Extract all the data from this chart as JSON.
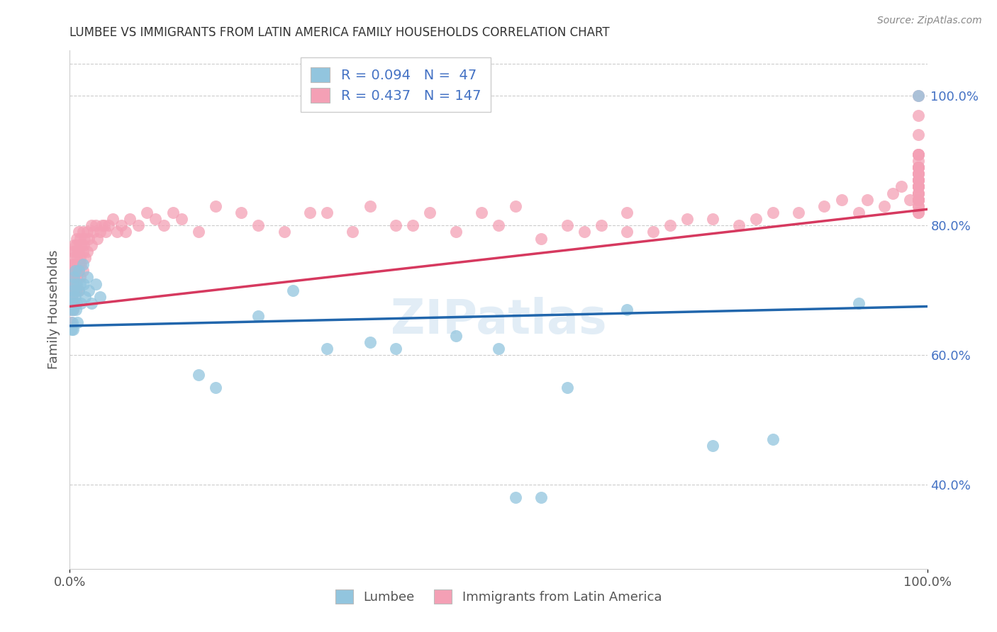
{
  "title": "LUMBEE VS IMMIGRANTS FROM LATIN AMERICA FAMILY HOUSEHOLDS CORRELATION CHART",
  "source": "Source: ZipAtlas.com",
  "ylabel": "Family Households",
  "watermark": "ZIPatlas",
  "legend_label1": "Lumbee",
  "legend_label2": "Immigrants from Latin America",
  "R1": 0.094,
  "N1": 47,
  "R2": 0.437,
  "N2": 147,
  "color1": "#92c5de",
  "color2": "#f4a0b5",
  "line_color1": "#2166ac",
  "line_color2": "#d6395f",
  "background": "#ffffff",
  "grid_color": "#cccccc",
  "right_ytick_color": "#4472c4",
  "xlim": [
    0.0,
    1.0
  ],
  "ylim": [
    0.27,
    1.07
  ],
  "line1_x0": 0.0,
  "line1_y0": 0.645,
  "line1_x1": 1.0,
  "line1_y1": 0.675,
  "line2_x0": 0.0,
  "line2_y0": 0.675,
  "line2_x1": 1.0,
  "line2_y1": 0.825,
  "xtick_labels": [
    "0.0%",
    "100.0%"
  ],
  "right_ytick_labels": [
    "40.0%",
    "60.0%",
    "80.0%",
    "100.0%"
  ],
  "right_ytick_values": [
    0.4,
    0.6,
    0.8,
    1.0
  ],
  "lumbee_x": [
    0.001,
    0.002,
    0.002,
    0.003,
    0.003,
    0.003,
    0.004,
    0.004,
    0.004,
    0.005,
    0.005,
    0.006,
    0.006,
    0.007,
    0.007,
    0.008,
    0.008,
    0.009,
    0.01,
    0.01,
    0.012,
    0.013,
    0.015,
    0.016,
    0.018,
    0.02,
    0.022,
    0.025,
    0.03,
    0.035,
    0.15,
    0.17,
    0.22,
    0.35,
    0.38,
    0.45,
    0.5,
    0.52,
    0.58,
    0.65,
    0.75,
    0.82,
    0.92,
    0.26,
    0.3,
    0.99,
    0.55
  ],
  "lumbee_y": [
    0.67,
    0.68,
    0.64,
    0.71,
    0.69,
    0.65,
    0.7,
    0.67,
    0.64,
    0.72,
    0.68,
    0.73,
    0.69,
    0.7,
    0.67,
    0.71,
    0.68,
    0.65,
    0.73,
    0.7,
    0.71,
    0.68,
    0.74,
    0.71,
    0.69,
    0.72,
    0.7,
    0.68,
    0.71,
    0.69,
    0.57,
    0.55,
    0.66,
    0.62,
    0.61,
    0.63,
    0.61,
    0.38,
    0.55,
    0.67,
    0.46,
    0.47,
    0.68,
    0.7,
    0.61,
    1.0,
    0.38
  ],
  "latin_x": [
    0.001,
    0.001,
    0.001,
    0.001,
    0.002,
    0.002,
    0.002,
    0.002,
    0.003,
    0.003,
    0.003,
    0.003,
    0.004,
    0.004,
    0.004,
    0.004,
    0.005,
    0.005,
    0.005,
    0.005,
    0.005,
    0.006,
    0.006,
    0.006,
    0.007,
    0.007,
    0.007,
    0.008,
    0.008,
    0.008,
    0.008,
    0.009,
    0.009,
    0.01,
    0.01,
    0.01,
    0.01,
    0.011,
    0.011,
    0.012,
    0.012,
    0.012,
    0.013,
    0.013,
    0.015,
    0.015,
    0.015,
    0.016,
    0.017,
    0.018,
    0.02,
    0.02,
    0.022,
    0.025,
    0.025,
    0.028,
    0.03,
    0.032,
    0.035,
    0.038,
    0.04,
    0.042,
    0.045,
    0.05,
    0.055,
    0.06,
    0.065,
    0.07,
    0.08,
    0.09,
    0.1,
    0.11,
    0.12,
    0.13,
    0.15,
    0.17,
    0.2,
    0.22,
    0.25,
    0.28,
    0.3,
    0.33,
    0.35,
    0.38,
    0.4,
    0.42,
    0.45,
    0.48,
    0.5,
    0.52,
    0.55,
    0.58,
    0.6,
    0.62,
    0.65,
    0.65,
    0.68,
    0.7,
    0.72,
    0.75,
    0.78,
    0.8,
    0.82,
    0.85,
    0.88,
    0.9,
    0.92,
    0.93,
    0.95,
    0.96,
    0.97,
    0.98,
    0.99,
    0.99,
    0.99,
    0.99,
    0.99,
    0.99,
    0.99,
    0.99,
    0.99,
    0.99,
    0.99,
    0.99,
    0.99,
    0.99,
    0.99,
    0.99,
    0.99,
    0.99,
    0.99,
    0.99,
    0.99,
    0.99,
    0.99,
    0.99,
    0.99,
    0.99,
    0.99,
    0.99,
    0.99,
    0.99,
    0.99,
    0.99,
    0.99,
    0.99,
    0.99
  ],
  "latin_y": [
    0.68,
    0.7,
    0.65,
    0.73,
    0.71,
    0.69,
    0.67,
    0.72,
    0.74,
    0.71,
    0.68,
    0.76,
    0.73,
    0.7,
    0.67,
    0.75,
    0.77,
    0.74,
    0.71,
    0.68,
    0.72,
    0.76,
    0.73,
    0.7,
    0.77,
    0.74,
    0.71,
    0.78,
    0.75,
    0.72,
    0.7,
    0.76,
    0.73,
    0.79,
    0.76,
    0.73,
    0.7,
    0.77,
    0.74,
    0.78,
    0.75,
    0.72,
    0.77,
    0.74,
    0.79,
    0.76,
    0.73,
    0.77,
    0.78,
    0.75,
    0.79,
    0.76,
    0.78,
    0.8,
    0.77,
    0.79,
    0.8,
    0.78,
    0.79,
    0.8,
    0.8,
    0.79,
    0.8,
    0.81,
    0.79,
    0.8,
    0.79,
    0.81,
    0.8,
    0.82,
    0.81,
    0.8,
    0.82,
    0.81,
    0.79,
    0.83,
    0.82,
    0.8,
    0.79,
    0.82,
    0.82,
    0.79,
    0.83,
    0.8,
    0.8,
    0.82,
    0.79,
    0.82,
    0.8,
    0.83,
    0.78,
    0.8,
    0.79,
    0.8,
    0.79,
    0.82,
    0.79,
    0.8,
    0.81,
    0.81,
    0.8,
    0.81,
    0.82,
    0.82,
    0.83,
    0.84,
    0.82,
    0.84,
    0.83,
    0.85,
    0.86,
    0.84,
    1.0,
    0.97,
    0.94,
    0.91,
    0.89,
    0.87,
    0.85,
    0.84,
    0.82,
    0.83,
    0.84,
    0.86,
    0.87,
    0.89,
    0.86,
    0.84,
    0.82,
    0.83,
    0.84,
    0.86,
    0.87,
    0.89,
    0.91,
    0.88,
    0.86,
    0.84,
    0.85,
    0.88,
    0.9,
    0.91,
    0.88,
    0.86,
    0.85,
    0.87,
    0.89
  ]
}
